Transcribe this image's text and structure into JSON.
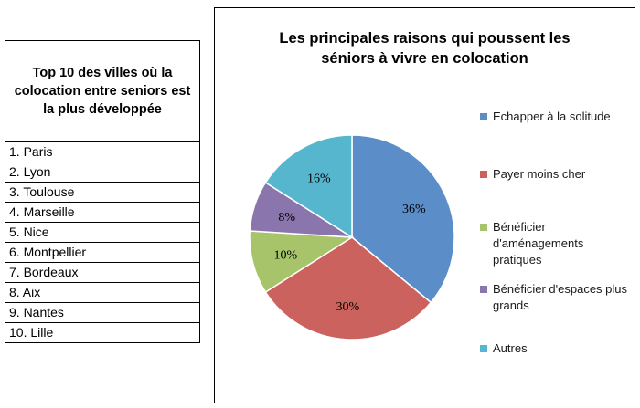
{
  "table": {
    "title": "Top 10 des villes où la colocation entre seniors est la plus développée",
    "rows": [
      "1. Paris",
      "2. Lyon",
      "3. Toulouse",
      "4. Marseille",
      "5. Nice",
      "6. Montpellier",
      "7. Bordeaux",
      "8. Aix",
      "9. Nantes",
      "10. Lille"
    ]
  },
  "chart_data": {
    "type": "pie",
    "title": "Les principales raisons qui poussent les séniors à vivre en colocation",
    "legend_position": "right",
    "slices": [
      {
        "label": "Echapper à la solitude",
        "value": 36,
        "display": "36%",
        "color": "#5b8ec9"
      },
      {
        "label": "Payer moins cher",
        "value": 30,
        "display": "30%",
        "color": "#cc625d"
      },
      {
        "label": "Bénéficier d'aménagements pratiques",
        "value": 10,
        "display": "10%",
        "color": "#a8c46a"
      },
      {
        "label": "Bénéficier d'espaces plus grands",
        "value": 8,
        "display": "8%",
        "color": "#8b75ad"
      },
      {
        "label": "Autres",
        "value": 16,
        "display": "16%",
        "color": "#55b6cd"
      }
    ]
  }
}
